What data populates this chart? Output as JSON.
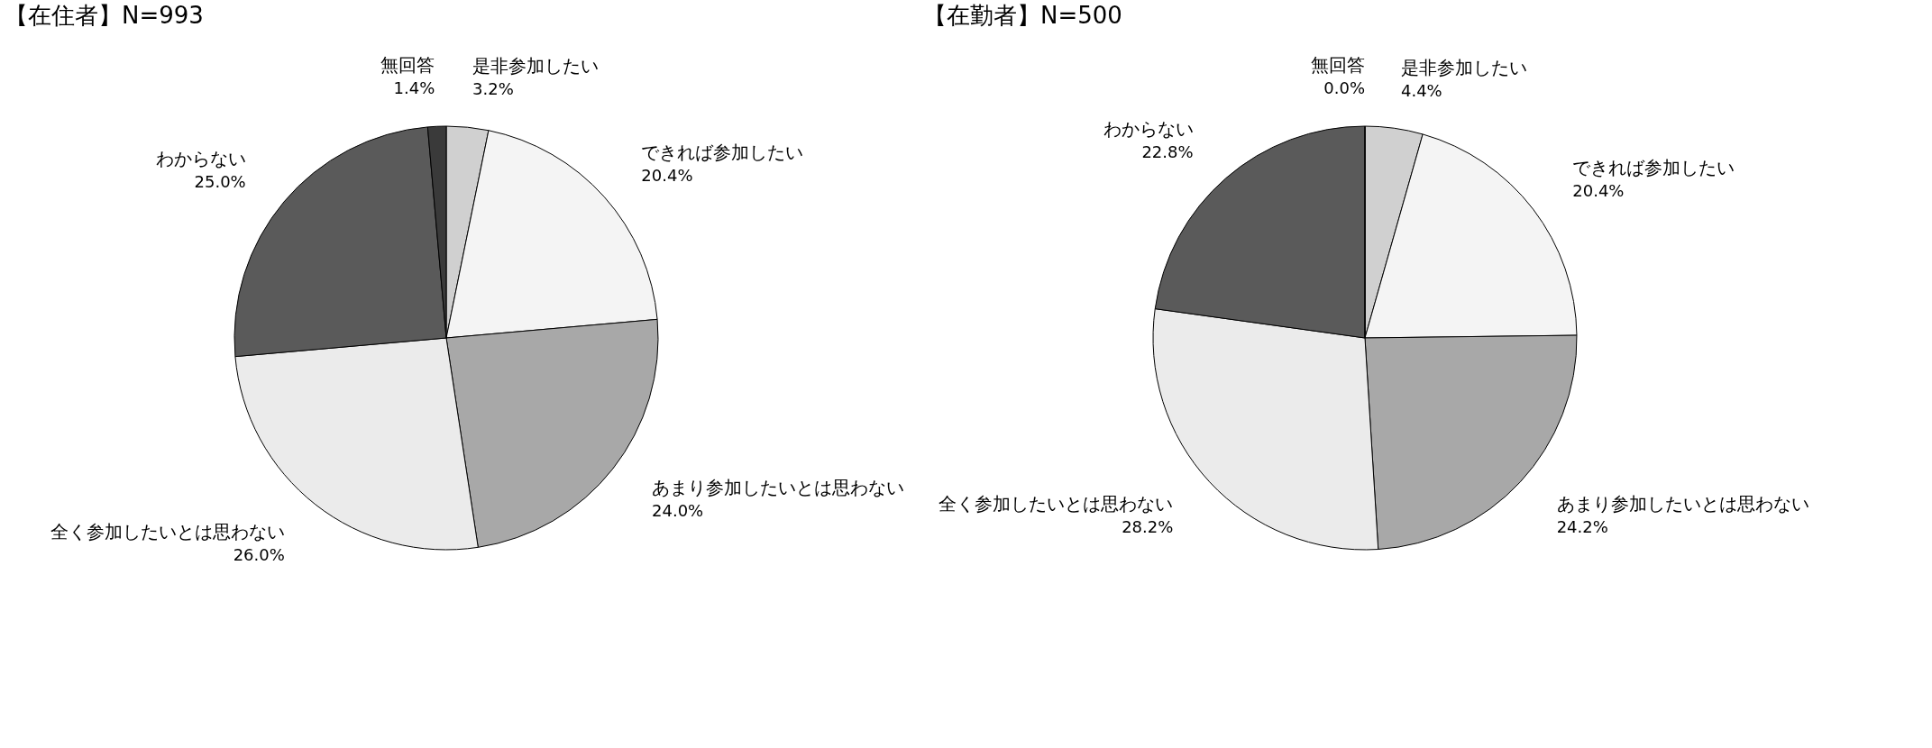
{
  "chart_data": [
    {
      "type": "pie",
      "title": "【在住者】N=993",
      "categories": [
        "是非参加したい",
        "できれば参加したい",
        "あまり参加したいとは思わない",
        "全く参加したいとは思わない",
        "わからない",
        "無回答"
      ],
      "values": [
        3.2,
        20.4,
        24.0,
        26.0,
        25.0,
        1.4
      ],
      "value_labels": [
        "3.2%",
        "20.4%",
        "24.0%",
        "26.0%",
        "25.0%",
        "1.4%"
      ],
      "colors": [
        "#d0d0d0",
        "#f4f4f4",
        "#a8a8a8",
        "#ebebeb",
        "#5a5a5a",
        "#3a3a3a"
      ],
      "legend": false
    },
    {
      "type": "pie",
      "title": "【在勤者】N=500",
      "categories": [
        "是非参加したい",
        "できれば参加したい",
        "あまり参加したいとは思わない",
        "全く参加したいとは思わない",
        "わからない",
        "無回答"
      ],
      "values": [
        4.4,
        20.4,
        24.2,
        28.2,
        22.8,
        0.0
      ],
      "value_labels": [
        "4.4%",
        "20.4%",
        "24.2%",
        "28.2%",
        "22.8%",
        "0.0%"
      ],
      "colors": [
        "#d0d0d0",
        "#f4f4f4",
        "#a8a8a8",
        "#ebebeb",
        "#5a5a5a",
        "#3a3a3a"
      ],
      "legend": false
    }
  ]
}
